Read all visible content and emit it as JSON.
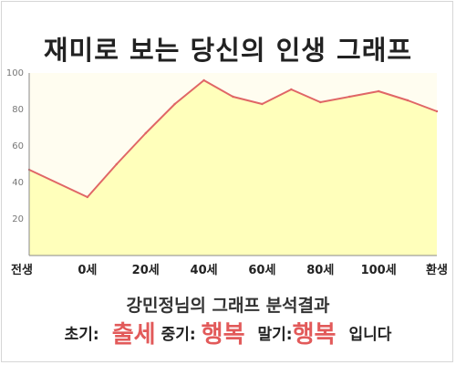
{
  "title": "재미로 보는 당신의 인생 그래프",
  "subtitle": "강민정님의 그래프 분석결과",
  "results": [
    {
      "label": "초기:",
      "value": "출세"
    },
    {
      "label": "중기:",
      "value": "행복"
    },
    {
      "label": "말기:",
      "value": "행복"
    }
  ],
  "closing": "입니다",
  "colors": {
    "line": "#e06666",
    "fill": "#ffffbb",
    "plot_bg": "#fffdf0",
    "accent": "#e25a5a"
  },
  "chart_data": {
    "type": "area",
    "title": "재미로 보는 당신의 인생 그래프",
    "xlabel": "",
    "ylabel": "",
    "ylim": [
      0,
      100
    ],
    "yticks": [
      20,
      40,
      60,
      80,
      100
    ],
    "xtick_labels": [
      "전생",
      "0세",
      "20세",
      "40세",
      "60세",
      "80세",
      "100세",
      "환생"
    ],
    "x": [
      -20,
      0,
      10,
      20,
      30,
      40,
      50,
      60,
      70,
      80,
      90,
      100,
      110,
      120
    ],
    "values": [
      47,
      32,
      50,
      67,
      83,
      96,
      87,
      83,
      91,
      84,
      87,
      90,
      85,
      79
    ],
    "grid": false,
    "legend": "none"
  }
}
